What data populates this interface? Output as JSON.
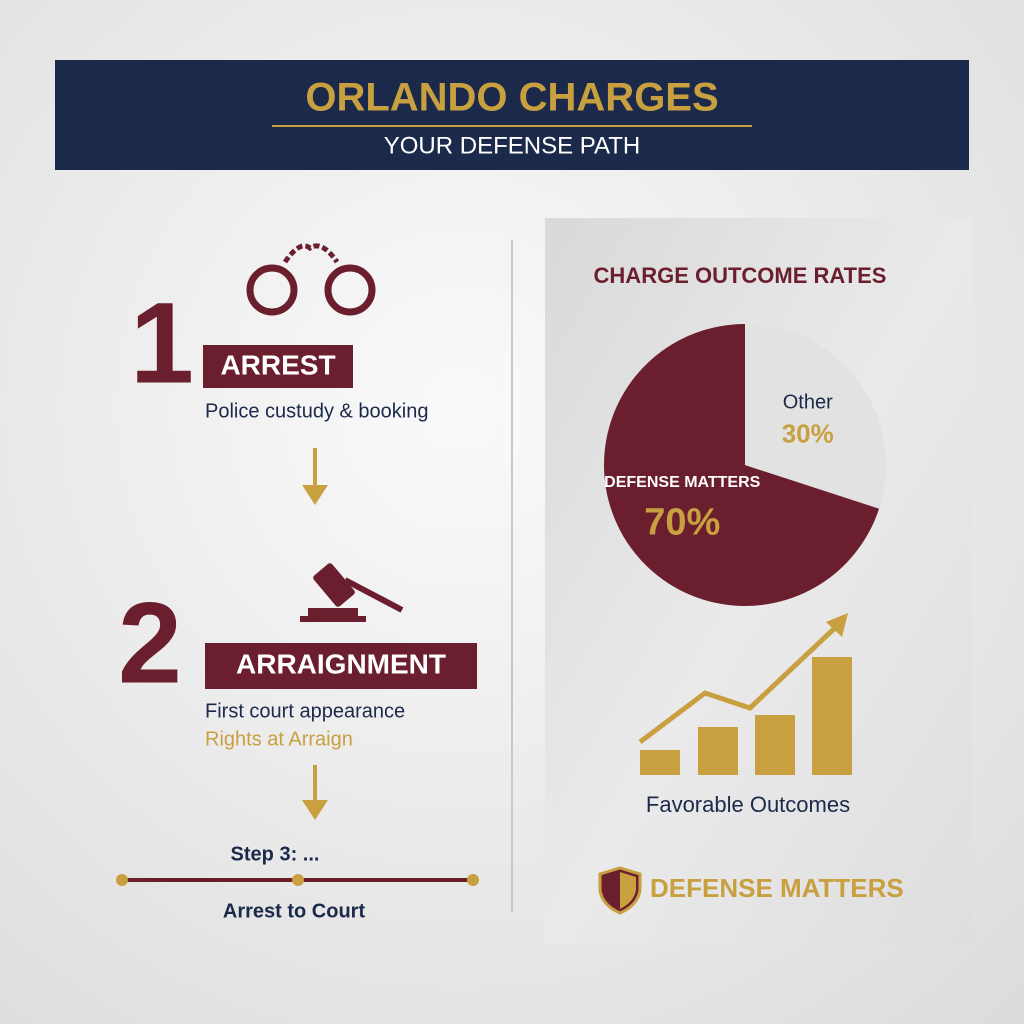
{
  "header": {
    "title": "ORLANDO CHARGES",
    "subtitle": "YOUR DEFENSE PATH"
  },
  "steps": [
    {
      "number": "1",
      "label": "ARREST",
      "description": "Police custudy & booking"
    },
    {
      "number": "2",
      "label": "ARRAIGNMENT",
      "description": "First court appearance",
      "note": "Rights at Arraign"
    }
  ],
  "next_step": "Step 3: ...",
  "timeline_label": "Arrest to Court",
  "chart_data": {
    "type": "pie",
    "title": "CHARGE OUTCOME RATES",
    "categories": [
      "DEFENSE MATTERS",
      "Other"
    ],
    "values": [
      70,
      30
    ],
    "value_labels": [
      "70%",
      "30%"
    ],
    "colors": [
      "#6b1f2e",
      "#e2e2e2"
    ]
  },
  "favorable_caption": "Favorable Outcomes",
  "badge": "DEFENSE MATTERS"
}
